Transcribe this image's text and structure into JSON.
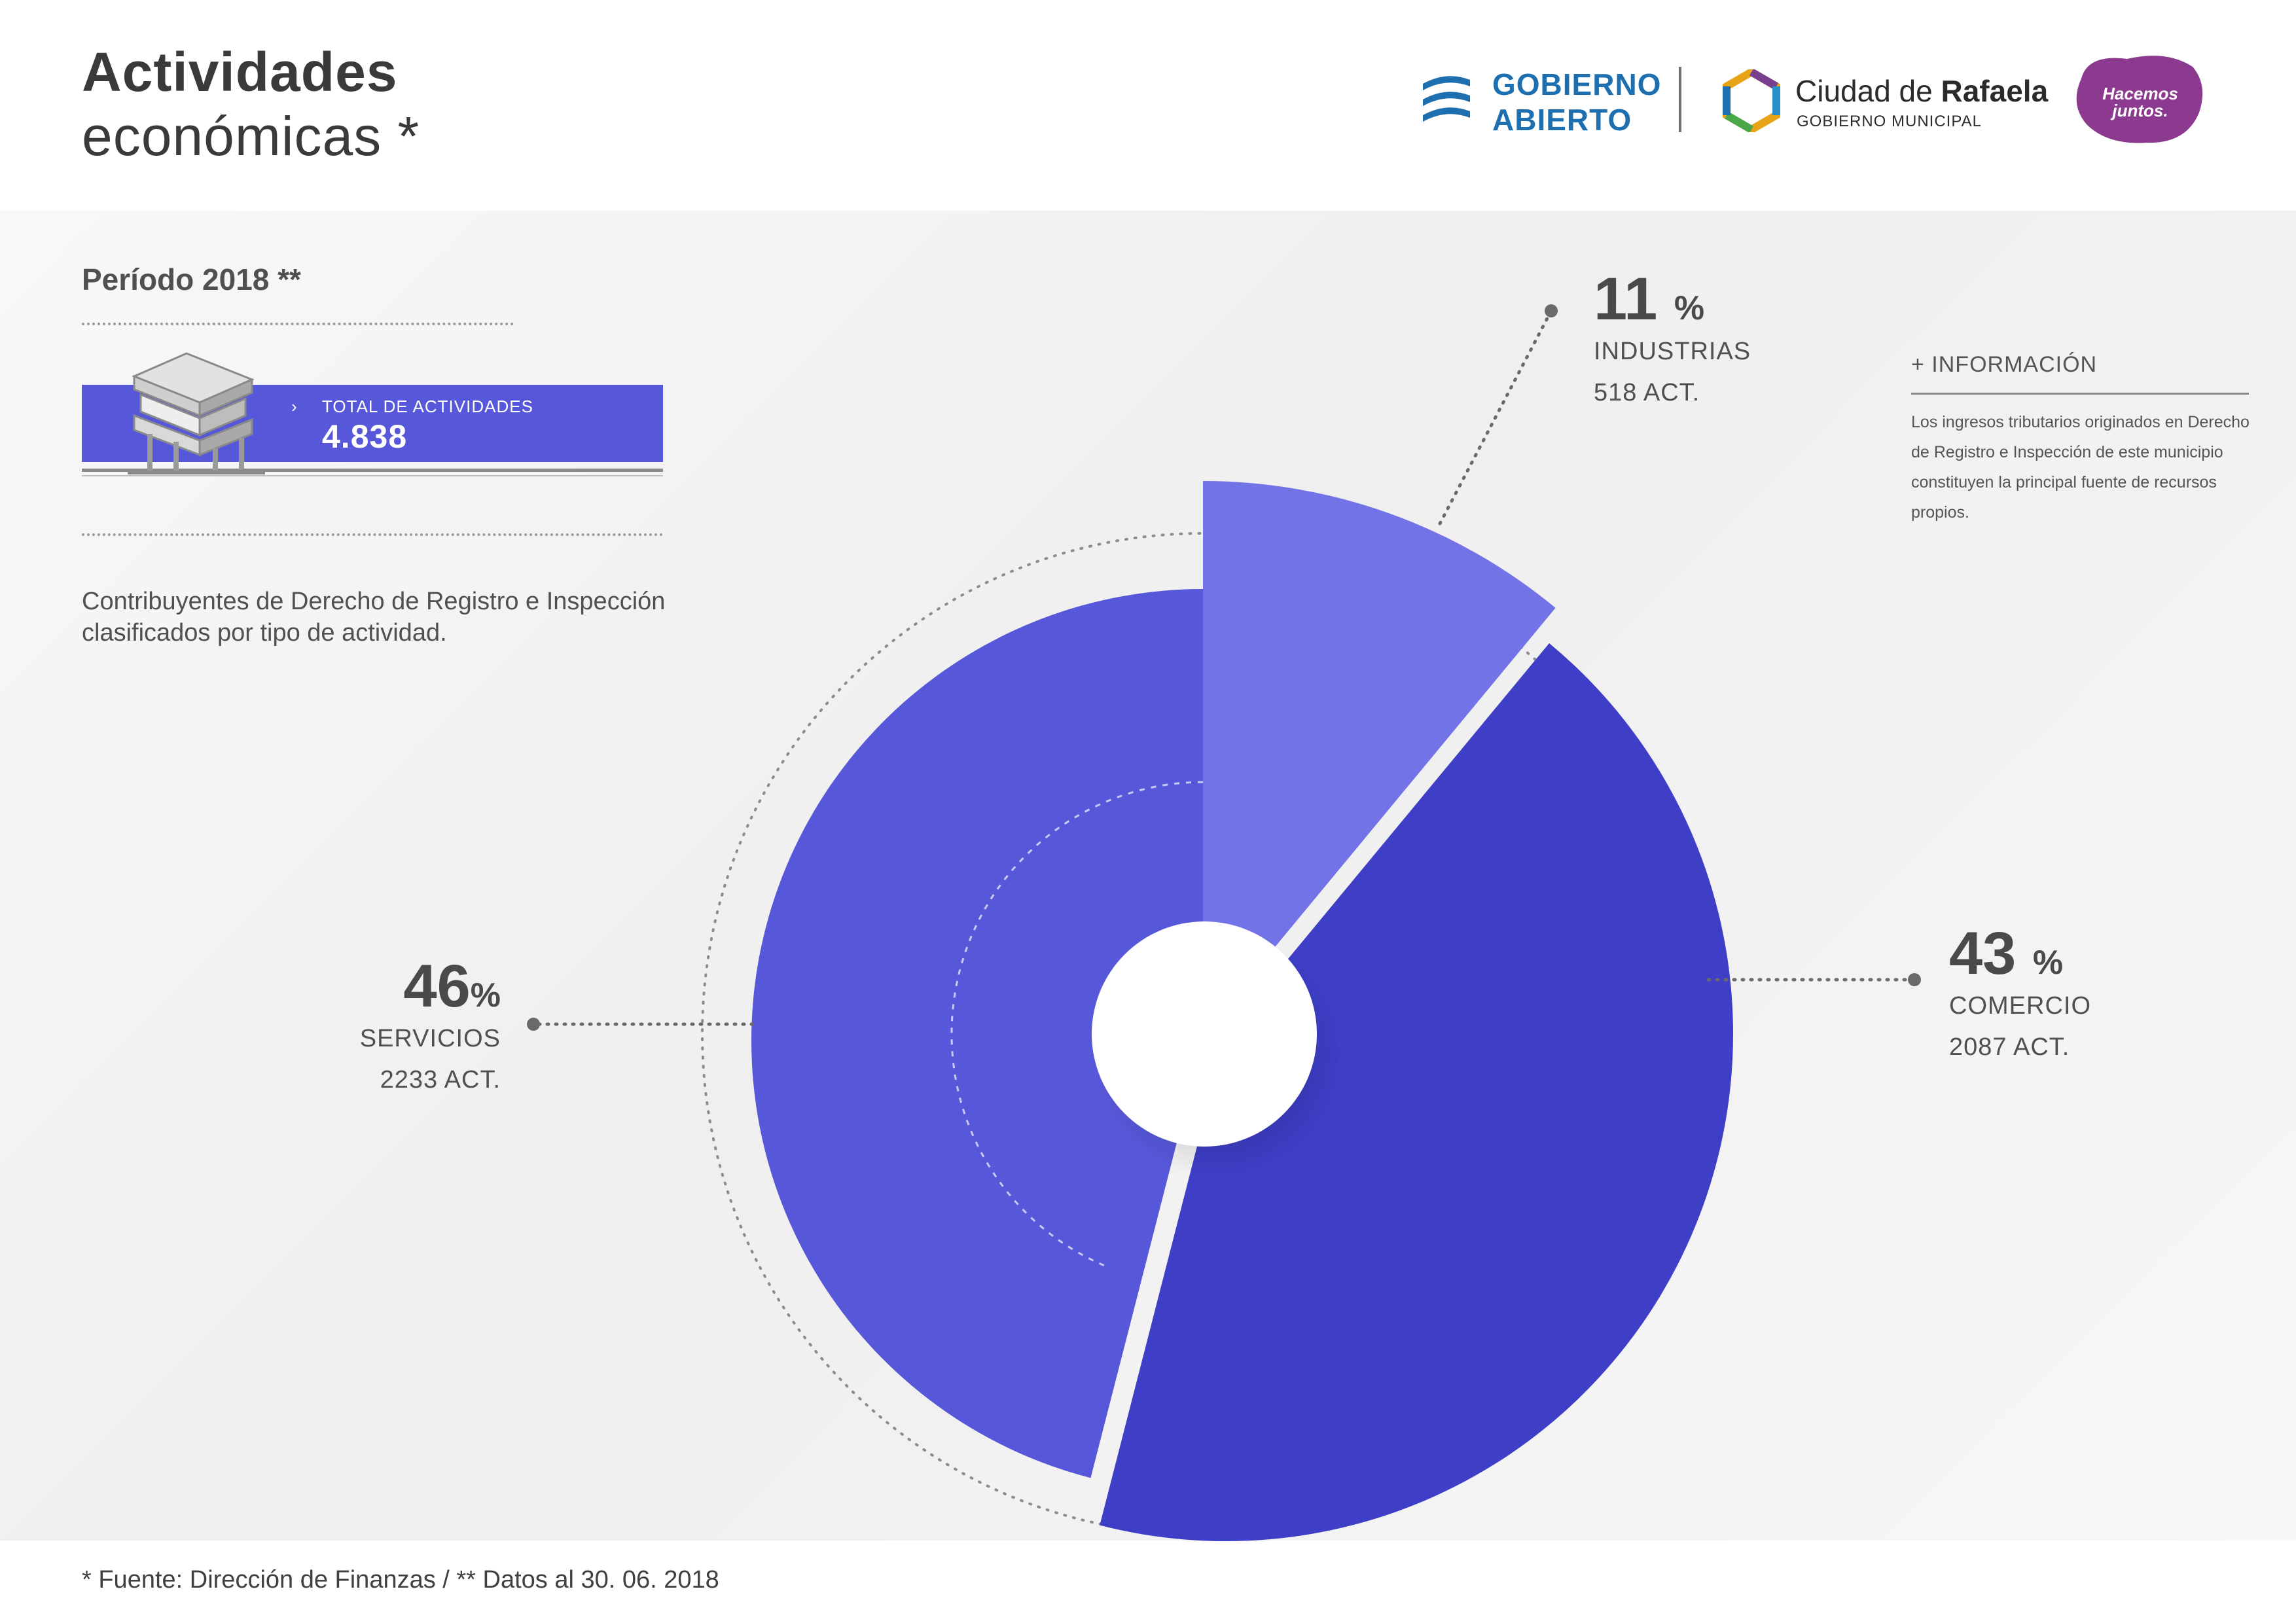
{
  "header": {
    "title_line1": "Actividades",
    "title_line2": "económicas *"
  },
  "logos": {
    "gobierno_abierto_line1": "GOBIERNO",
    "gobierno_abierto_line2": "ABIERTO",
    "ciudad_prefix": "Ciudad de ",
    "ciudad_name": "Rafaela",
    "ciudad_sub": "GOBIERNO MUNICIPAL",
    "badge_line1": "Hacemos",
    "badge_line2": "juntos."
  },
  "sidebar": {
    "periodo": "Período 2018 **",
    "total_chevron": "›",
    "total_label": "TOTAL DE ACTIVIDADES",
    "total_value": "4.838",
    "description": "Contribuyentes de Derecho de Registro e Inspección clasificados por tipo de actividad."
  },
  "info": {
    "title": "+ INFORMACIÓN",
    "text": "Los ingresos tributarios originados en Derecho de Registro e Inspección  de este municipio constituyen la principal fuente de recursos propios."
  },
  "chart_data": {
    "type": "pie",
    "total": 4838,
    "slices": [
      {
        "name": "INDUSTRIAS",
        "percent": 11,
        "percent_label": "11",
        "count": 518,
        "count_label": "518 ACT.",
        "color": "#7373e8"
      },
      {
        "name": "COMERCIO",
        "percent": 43,
        "percent_label": "43",
        "count": 2087,
        "count_label": "2087 ACT.",
        "color": "#3e3ec7"
      },
      {
        "name": "SERVICIOS",
        "percent": 46,
        "percent_label": "46",
        "count": 2233,
        "count_label": "2233 ACT.",
        "color": "#5757d9"
      }
    ],
    "percent_sign": "%"
  },
  "footnote": "* Fuente: Dirección de Finanzas / ** Datos al 30. 06. 2018"
}
